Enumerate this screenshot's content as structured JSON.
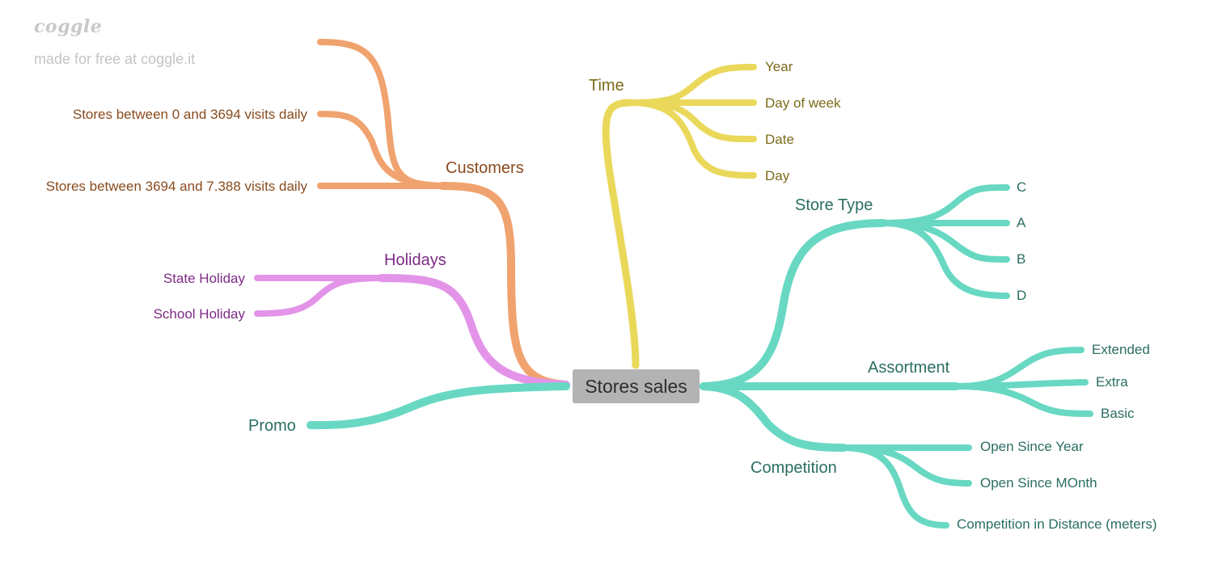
{
  "watermark": {
    "logo": "coggle",
    "tagline": "made for free at coggle.it"
  },
  "center": {
    "label": "Stores sales",
    "color": "#b3b3b3"
  },
  "colors": {
    "orange": "#f0a36f",
    "yellow": "#ead85a",
    "teal": "#68d8c3",
    "pink": "#e394e9"
  },
  "text_colors": {
    "orange": "#8a4b1e",
    "yellow": "#7d6b1a",
    "teal": "#2a6e62",
    "pink": "#7c2a85"
  },
  "branches": {
    "customers": {
      "label": "Customers",
      "children": [
        "",
        "Stores between 0 and 3694 visits daily",
        "Stores between 3694 and 7.388 visits daily"
      ]
    },
    "holidays": {
      "label": "Holidays",
      "children": [
        "State Holiday",
        "School Holiday"
      ]
    },
    "promo": {
      "label": "Promo"
    },
    "time": {
      "label": "Time",
      "children": [
        "Year",
        "Day of week",
        "Date",
        "Day"
      ]
    },
    "store_type": {
      "label": "Store Type",
      "children": [
        "C",
        "A",
        "B",
        "D"
      ]
    },
    "assortment": {
      "label": "Assortment",
      "children": [
        "Extended",
        "Extra",
        "Basic"
      ]
    },
    "competition": {
      "label": "Competition",
      "children": [
        "Open Since Year",
        "Open Since MOnth",
        "Competition in Distance (meters)"
      ]
    }
  }
}
